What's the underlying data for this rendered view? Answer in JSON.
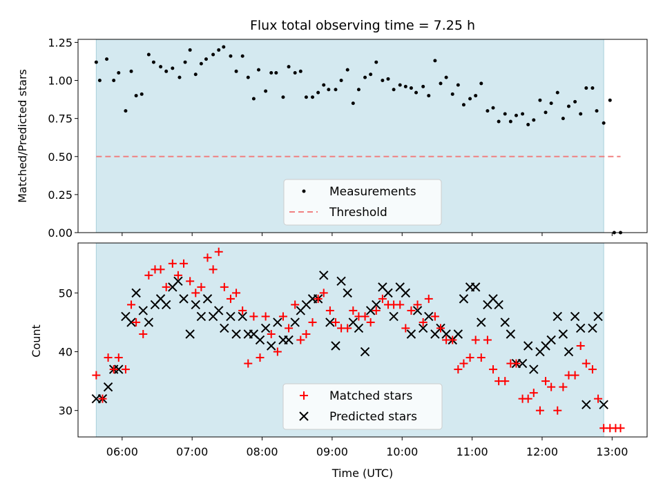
{
  "chart_data": [
    {
      "type": "scatter",
      "title": "Flux total observing time = 7.25 h",
      "xlabel": "",
      "ylabel": "Matched/Predicted stars",
      "x_unit": "hours UTC",
      "xlim": [
        5.37,
        13.5
      ],
      "ylim": [
        0.0,
        1.27
      ],
      "yticks": [
        0.0,
        0.25,
        0.5,
        0.75,
        1.0,
        1.25
      ],
      "ytick_labels": [
        "0.00",
        "0.25",
        "0.50",
        "0.75",
        "1.00",
        "1.25"
      ],
      "observing_window": [
        5.63,
        12.88
      ],
      "legend_location": "lower center",
      "series": [
        {
          "name": "Measurements",
          "marker": "dot",
          "color": "#000000",
          "x": [
            5.63,
            5.68,
            5.78,
            5.88,
            5.95,
            6.05,
            6.13,
            6.2,
            6.28,
            6.38,
            6.45,
            6.55,
            6.63,
            6.72,
            6.82,
            6.9,
            6.97,
            7.05,
            7.13,
            7.2,
            7.3,
            7.38,
            7.45,
            7.55,
            7.63,
            7.72,
            7.8,
            7.88,
            7.95,
            8.05,
            8.13,
            8.2,
            8.3,
            8.38,
            8.47,
            8.55,
            8.63,
            8.72,
            8.8,
            8.88,
            8.95,
            9.05,
            9.13,
            9.22,
            9.3,
            9.38,
            9.47,
            9.55,
            9.63,
            9.72,
            9.8,
            9.88,
            9.97,
            10.05,
            10.13,
            10.2,
            10.3,
            10.38,
            10.47,
            10.55,
            10.63,
            10.72,
            10.8,
            10.88,
            10.97,
            11.05,
            11.13,
            11.22,
            11.3,
            11.38,
            11.47,
            11.55,
            11.63,
            11.72,
            11.8,
            11.88,
            11.97,
            12.05,
            12.13,
            12.22,
            12.3,
            12.38,
            12.47,
            12.55,
            12.63,
            12.72,
            12.78,
            12.88,
            12.97,
            13.03,
            13.12
          ],
          "y": [
            1.12,
            1.0,
            1.14,
            1.0,
            1.05,
            0.8,
            1.06,
            0.9,
            0.91,
            1.17,
            1.12,
            1.09,
            1.06,
            1.08,
            1.02,
            1.12,
            1.2,
            1.04,
            1.11,
            1.14,
            1.17,
            1.2,
            1.22,
            1.16,
            1.06,
            1.16,
            1.02,
            0.88,
            1.07,
            0.93,
            1.05,
            1.05,
            0.89,
            1.09,
            1.05,
            1.06,
            0.89,
            0.89,
            0.92,
            0.97,
            0.94,
            0.94,
            1.0,
            1.07,
            0.85,
            0.94,
            1.02,
            1.04,
            1.12,
            1.0,
            1.01,
            0.94,
            0.97,
            0.96,
            0.95,
            0.92,
            0.96,
            0.9,
            1.13,
            0.98,
            1.02,
            0.91,
            0.97,
            0.84,
            0.88,
            0.9,
            0.98,
            0.8,
            0.82,
            0.73,
            0.78,
            0.73,
            0.77,
            0.78,
            0.71,
            0.74,
            0.87,
            0.79,
            0.85,
            0.92,
            0.75,
            0.83,
            0.86,
            0.78,
            0.95,
            0.95,
            0.8,
            0.72,
            0.87,
            0.0,
            0.0
          ]
        },
        {
          "name": "Threshold",
          "marker": "dashed-line",
          "color": "#f08080",
          "x": [
            5.63,
            13.12
          ],
          "y": [
            0.5,
            0.5
          ]
        }
      ]
    },
    {
      "type": "scatter",
      "title": "",
      "xlabel": "Time (UTC)",
      "ylabel": "Count",
      "x_unit": "hours UTC",
      "xlim": [
        5.37,
        13.5
      ],
      "ylim": [
        25.5,
        58.5
      ],
      "yticks": [
        30,
        40,
        50
      ],
      "ytick_labels": [
        "30",
        "40",
        "50"
      ],
      "xticks": [
        6,
        7,
        8,
        9,
        10,
        11,
        12,
        13
      ],
      "xtick_labels": [
        "06:00",
        "07:00",
        "08:00",
        "09:00",
        "10:00",
        "11:00",
        "12:00",
        "13:00"
      ],
      "observing_window": [
        5.63,
        12.88
      ],
      "legend_location": "lower center",
      "series": [
        {
          "name": "Matched stars",
          "marker": "plus",
          "color": "#ff0000",
          "x": [
            5.63,
            5.72,
            5.8,
            5.88,
            5.95,
            6.05,
            6.13,
            6.2,
            6.3,
            6.38,
            6.47,
            6.55,
            6.63,
            6.72,
            6.8,
            6.88,
            6.97,
            7.05,
            7.13,
            7.22,
            7.3,
            7.38,
            7.46,
            7.55,
            7.63,
            7.72,
            7.8,
            7.88,
            7.97,
            8.05,
            8.13,
            8.22,
            8.3,
            8.38,
            8.47,
            8.55,
            8.63,
            8.72,
            8.8,
            8.88,
            8.97,
            9.05,
            9.13,
            9.22,
            9.3,
            9.38,
            9.47,
            9.55,
            9.63,
            9.72,
            9.8,
            9.88,
            9.97,
            10.05,
            10.13,
            10.22,
            10.3,
            10.38,
            10.47,
            10.55,
            10.63,
            10.72,
            10.8,
            10.88,
            10.97,
            11.05,
            11.13,
            11.22,
            11.3,
            11.38,
            11.47,
            11.55,
            11.63,
            11.72,
            11.8,
            11.88,
            11.97,
            12.05,
            12.13,
            12.22,
            12.3,
            12.38,
            12.47,
            12.55,
            12.63,
            12.72,
            12.8,
            12.88,
            12.97,
            13.05,
            13.12
          ],
          "y": [
            36,
            32,
            39,
            37,
            39,
            37,
            48,
            45,
            43,
            53,
            54,
            54,
            51,
            55,
            53,
            55,
            52,
            50,
            51,
            56,
            54,
            57,
            51,
            49,
            50,
            47,
            38,
            46,
            39,
            46,
            43,
            40,
            46,
            44,
            48,
            42,
            43,
            45,
            49,
            50,
            47,
            45,
            44,
            44,
            47,
            46,
            46,
            45,
            47,
            49,
            48,
            48,
            48,
            44,
            47,
            48,
            45,
            49,
            46,
            44,
            42,
            42,
            37,
            38,
            39,
            42,
            39,
            42,
            37,
            35,
            35,
            38,
            38,
            32,
            32,
            33,
            30,
            35,
            34,
            30,
            34,
            36,
            36,
            41,
            38,
            37,
            32,
            27,
            27,
            27,
            27
          ]
        },
        {
          "name": "Predicted stars",
          "marker": "x",
          "color": "#000000",
          "x": [
            5.63,
            5.72,
            5.8,
            5.88,
            5.95,
            6.05,
            6.13,
            6.2,
            6.3,
            6.38,
            6.47,
            6.55,
            6.63,
            6.72,
            6.8,
            6.88,
            6.97,
            7.05,
            7.13,
            7.22,
            7.3,
            7.38,
            7.46,
            7.55,
            7.63,
            7.72,
            7.8,
            7.88,
            7.97,
            8.05,
            8.13,
            8.22,
            8.3,
            8.38,
            8.47,
            8.55,
            8.63,
            8.72,
            8.8,
            8.88,
            8.97,
            9.05,
            9.13,
            9.22,
            9.3,
            9.38,
            9.47,
            9.55,
            9.63,
            9.72,
            9.8,
            9.88,
            9.97,
            10.05,
            10.13,
            10.22,
            10.3,
            10.38,
            10.47,
            10.55,
            10.63,
            10.72,
            10.8,
            10.88,
            10.97,
            11.05,
            11.13,
            11.22,
            11.3,
            11.38,
            11.47,
            11.55,
            11.63,
            11.72,
            11.8,
            11.88,
            11.97,
            12.05,
            12.13,
            12.22,
            12.3,
            12.38,
            12.47,
            12.55,
            12.63,
            12.72,
            12.8,
            12.88
          ],
          "y": [
            32,
            32,
            34,
            37,
            37,
            46,
            45,
            50,
            47,
            45,
            48,
            49,
            48,
            51,
            52,
            49,
            43,
            48,
            46,
            49,
            46,
            47,
            44,
            46,
            43,
            46,
            43,
            43,
            42,
            44,
            41,
            45,
            42,
            42,
            45,
            47,
            48,
            49,
            49,
            53,
            45,
            41,
            52,
            50,
            45,
            44,
            40,
            47,
            48,
            51,
            50,
            46,
            51,
            50,
            43,
            47,
            44,
            46,
            43,
            44,
            43,
            42,
            43,
            49,
            51,
            51,
            45,
            48,
            49,
            48,
            45,
            43,
            38,
            38,
            41,
            37,
            40,
            41,
            42,
            46,
            43,
            40,
            46,
            44,
            31,
            44,
            46,
            31
          ]
        }
      ]
    }
  ],
  "legend_top": {
    "measurements_label": "Measurements",
    "threshold_label": "Threshold"
  },
  "legend_bottom": {
    "matched_label": "Matched stars",
    "predicted_label": "Predicted stars"
  },
  "colors": {
    "window_shade": "#d4e9f0",
    "window_edge": "#a9cfdb",
    "matched": "#ff0000",
    "predicted": "#000000",
    "threshold": "#f08080"
  }
}
